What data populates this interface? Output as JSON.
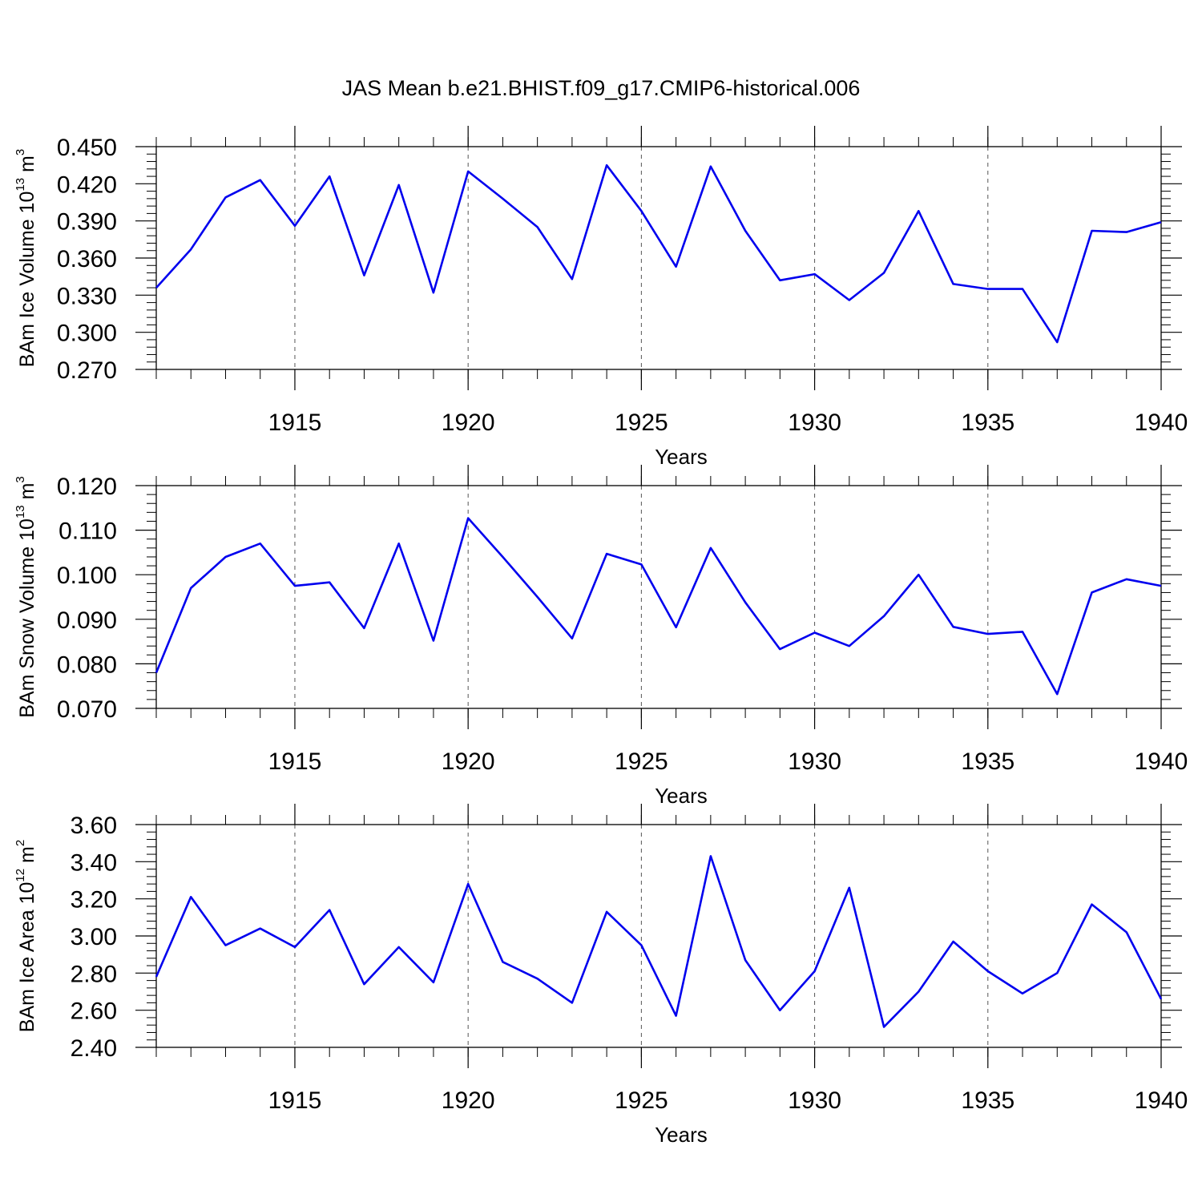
{
  "title": "JAS Mean b.e21.BHIST.f09_g17.CMIP6-historical.006",
  "chart_data": [
    {
      "type": "line",
      "ylabel": {
        "main": "BAm Ice Volume 10",
        "exp": "13",
        "unit": " m",
        "unit_exp": "3"
      },
      "xlabel": "Years",
      "xlim": [
        1911,
        1940
      ],
      "ylim": [
        0.27,
        0.45
      ],
      "yticks": [
        "0.270",
        "0.300",
        "0.330",
        "0.360",
        "0.390",
        "0.420",
        "0.450"
      ],
      "xticks": [
        "1915",
        "1920",
        "1925",
        "1930",
        "1935",
        "1940"
      ],
      "color": "#0000ee",
      "grid": "vertical dashed at x ticks",
      "x": [
        1911,
        1912,
        1913,
        1914,
        1915,
        1916,
        1917,
        1918,
        1919,
        1920,
        1921,
        1922,
        1923,
        1924,
        1925,
        1926,
        1927,
        1928,
        1929,
        1930,
        1931,
        1932,
        1933,
        1934,
        1935,
        1936,
        1937,
        1938,
        1939,
        1940
      ],
      "values": [
        0.336,
        0.367,
        0.409,
        0.423,
        0.386,
        0.426,
        0.346,
        0.419,
        0.332,
        0.43,
        0.408,
        0.385,
        0.343,
        0.435,
        0.398,
        0.353,
        0.434,
        0.382,
        0.342,
        0.347,
        0.326,
        0.348,
        0.398,
        0.339,
        0.335,
        0.335,
        0.292,
        0.382,
        0.381,
        0.389
      ]
    },
    {
      "type": "line",
      "ylabel": {
        "main": "BAm Snow Volume 10",
        "exp": "13",
        "unit": " m",
        "unit_exp": "3"
      },
      "xlabel": "Years",
      "xlim": [
        1911,
        1940
      ],
      "ylim": [
        0.07,
        0.12
      ],
      "yticks": [
        "0.070",
        "0.080",
        "0.090",
        "0.100",
        "0.110",
        "0.120"
      ],
      "xticks": [
        "1915",
        "1920",
        "1925",
        "1930",
        "1935",
        "1940"
      ],
      "color": "#0000ee",
      "grid": "vertical dashed at x ticks",
      "x": [
        1911,
        1912,
        1913,
        1914,
        1915,
        1916,
        1917,
        1918,
        1919,
        1920,
        1921,
        1922,
        1923,
        1924,
        1925,
        1926,
        1927,
        1928,
        1929,
        1930,
        1931,
        1932,
        1933,
        1934,
        1935,
        1936,
        1937,
        1938,
        1939,
        1940
      ],
      "values": [
        0.078,
        0.097,
        0.104,
        0.107,
        0.0975,
        0.0983,
        0.088,
        0.107,
        0.0852,
        0.1127,
        0.104,
        0.095,
        0.0857,
        0.1047,
        0.1023,
        0.0882,
        0.106,
        0.0938,
        0.0833,
        0.087,
        0.084,
        0.0907,
        0.1,
        0.0883,
        0.0867,
        0.0872,
        0.0732,
        0.096,
        0.099,
        0.0975
      ]
    },
    {
      "type": "line",
      "ylabel": {
        "main": "BAm Ice Area 10",
        "exp": "12",
        "unit": " m",
        "unit_exp": "2"
      },
      "xlabel": "Years",
      "xlim": [
        1911,
        1940
      ],
      "ylim": [
        2.4,
        3.6
      ],
      "yticks": [
        "2.40",
        "2.60",
        "2.80",
        "3.00",
        "3.20",
        "3.40",
        "3.60"
      ],
      "xticks": [
        "1915",
        "1920",
        "1925",
        "1930",
        "1935",
        "1940"
      ],
      "color": "#0000ee",
      "grid": "vertical dashed at x ticks",
      "x": [
        1911,
        1912,
        1913,
        1914,
        1915,
        1916,
        1917,
        1918,
        1919,
        1920,
        1921,
        1922,
        1923,
        1924,
        1925,
        1926,
        1927,
        1928,
        1929,
        1930,
        1931,
        1932,
        1933,
        1934,
        1935,
        1936,
        1937,
        1938,
        1939,
        1940
      ],
      "values": [
        2.78,
        3.21,
        2.95,
        3.04,
        2.94,
        3.14,
        2.74,
        2.94,
        2.75,
        3.28,
        2.86,
        2.77,
        2.64,
        3.13,
        2.95,
        2.57,
        3.43,
        2.87,
        2.6,
        2.81,
        3.26,
        2.51,
        2.7,
        2.97,
        2.81,
        2.69,
        2.8,
        3.17,
        3.02,
        2.66
      ]
    }
  ]
}
